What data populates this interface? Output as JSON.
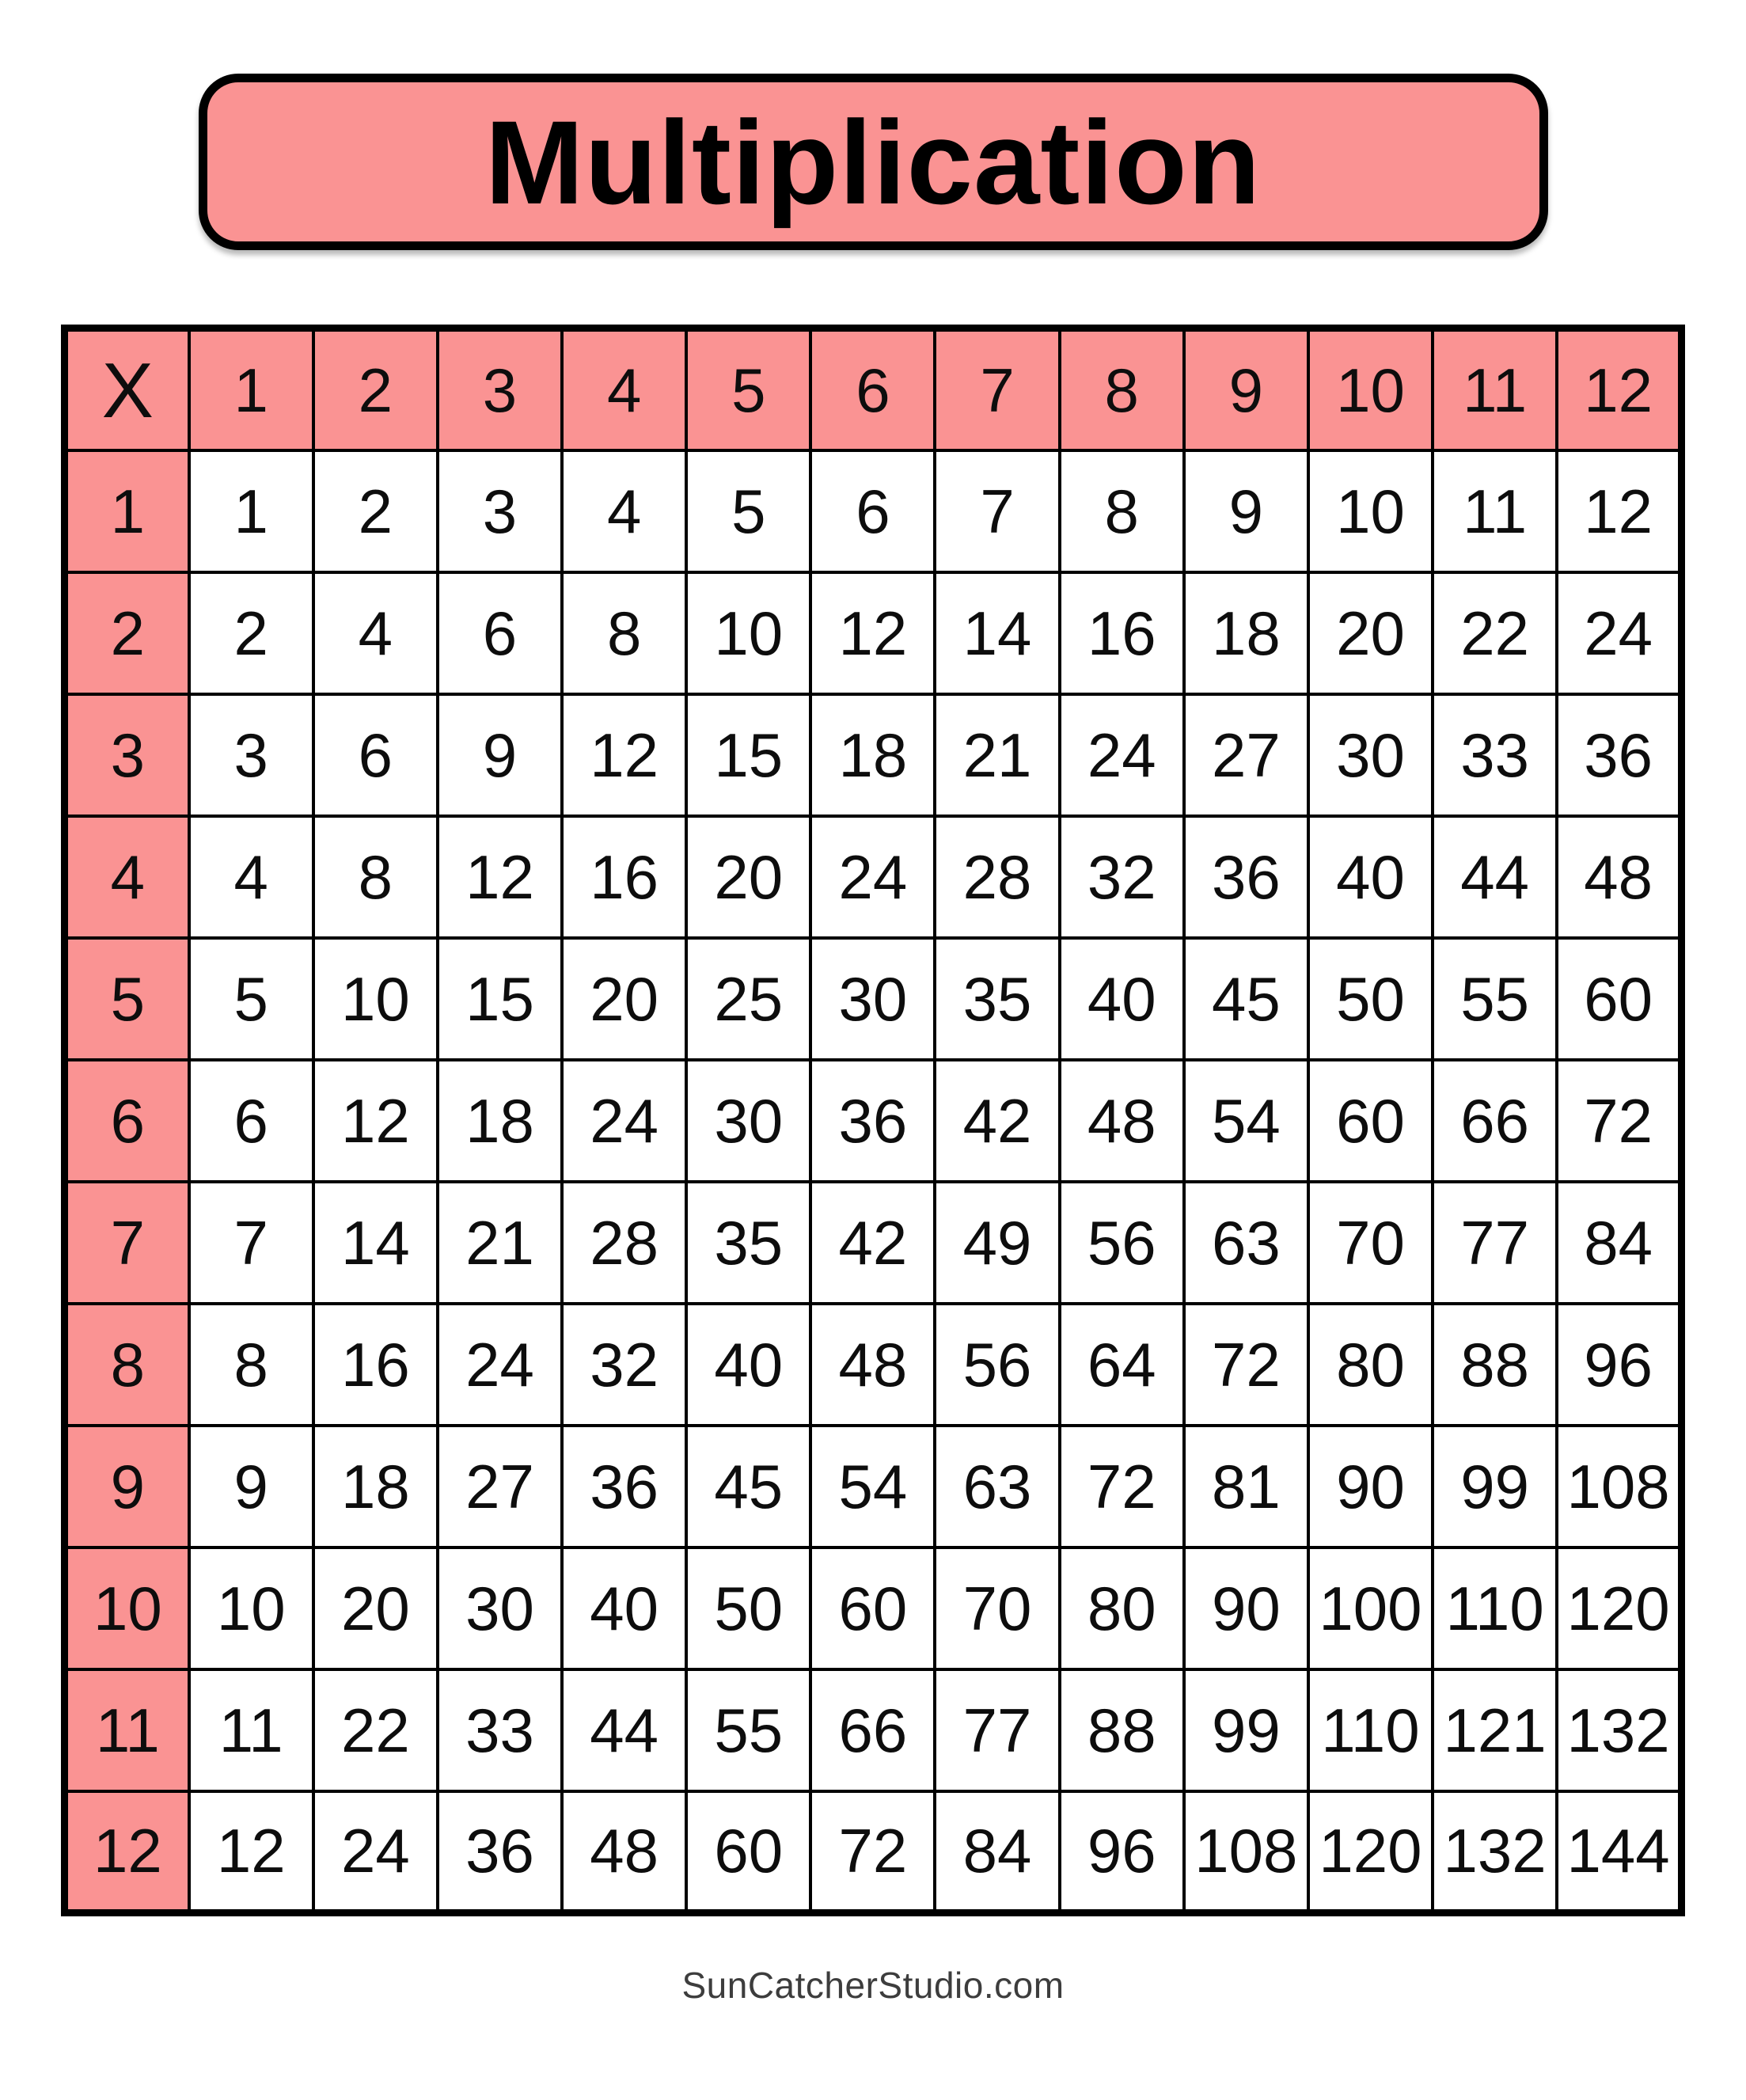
{
  "title": "Multiplication",
  "footer": "SunCatcherStudio.com",
  "colors": {
    "pink": "#FA9393",
    "border": "#000000",
    "cell_text": "#0D0D0D",
    "footer_text": "#3D3D3D"
  },
  "table": {
    "corner_label": "X",
    "header": [
      "1",
      "2",
      "3",
      "4",
      "5",
      "6",
      "7",
      "8",
      "9",
      "10",
      "11",
      "12"
    ],
    "rows": [
      {
        "header": "1",
        "values": [
          1,
          2,
          3,
          4,
          5,
          6,
          7,
          8,
          9,
          10,
          11,
          12
        ]
      },
      {
        "header": "2",
        "values": [
          2,
          4,
          6,
          8,
          10,
          12,
          14,
          16,
          18,
          20,
          22,
          24
        ]
      },
      {
        "header": "3",
        "values": [
          3,
          6,
          9,
          12,
          15,
          18,
          21,
          24,
          27,
          30,
          33,
          36
        ]
      },
      {
        "header": "4",
        "values": [
          4,
          8,
          12,
          16,
          20,
          24,
          28,
          32,
          36,
          40,
          44,
          48
        ]
      },
      {
        "header": "5",
        "values": [
          5,
          10,
          15,
          20,
          25,
          30,
          35,
          40,
          45,
          50,
          55,
          60
        ]
      },
      {
        "header": "6",
        "values": [
          6,
          12,
          18,
          24,
          30,
          36,
          42,
          48,
          54,
          60,
          66,
          72
        ]
      },
      {
        "header": "7",
        "values": [
          7,
          14,
          21,
          28,
          35,
          42,
          49,
          56,
          63,
          70,
          77,
          84
        ]
      },
      {
        "header": "8",
        "values": [
          8,
          16,
          24,
          32,
          40,
          48,
          56,
          64,
          72,
          80,
          88,
          96
        ]
      },
      {
        "header": "9",
        "values": [
          9,
          18,
          27,
          36,
          45,
          54,
          63,
          72,
          81,
          90,
          99,
          108
        ]
      },
      {
        "header": "10",
        "values": [
          10,
          20,
          30,
          40,
          50,
          60,
          70,
          80,
          90,
          100,
          110,
          120
        ]
      },
      {
        "header": "11",
        "values": [
          11,
          22,
          33,
          44,
          55,
          66,
          77,
          88,
          99,
          110,
          121,
          132
        ]
      },
      {
        "header": "12",
        "values": [
          12,
          24,
          36,
          48,
          60,
          72,
          84,
          96,
          108,
          120,
          132,
          144
        ]
      }
    ]
  }
}
